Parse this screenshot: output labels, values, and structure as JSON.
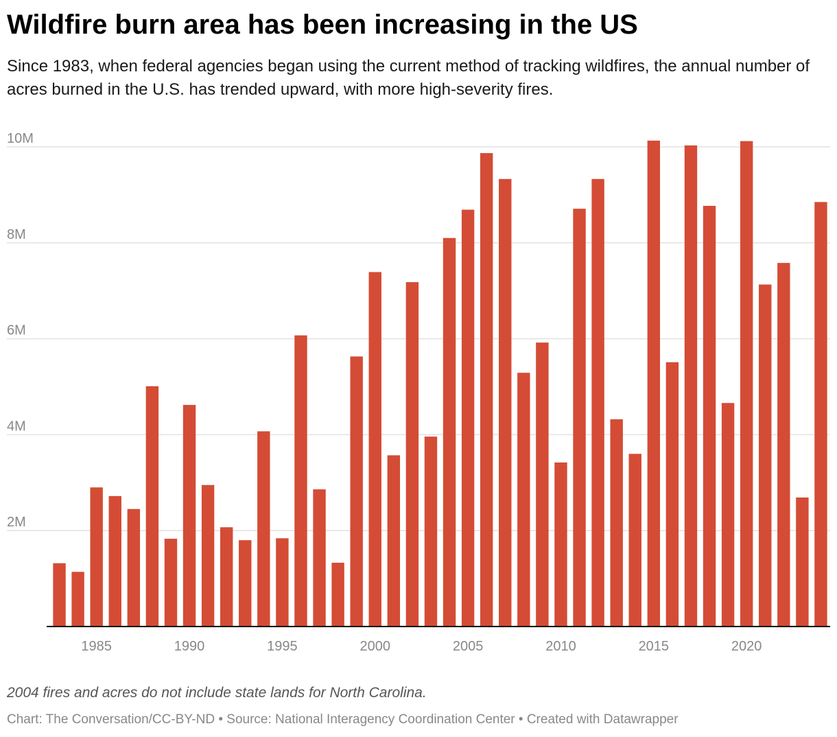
{
  "header": {
    "title": "Wildfire burn area has been increasing in the US",
    "subtitle": "Since 1983, when federal agencies began using the current method of tracking wildfires, the annual number of acres burned in the U.S. has trended upward, with more high-severity fires."
  },
  "footer": {
    "note": "2004 fires and acres do not include state lands for North Carolina.",
    "credits": "Chart: The Conversation/CC-BY-ND • Source: National Interagency Coordination Center • Created with Datawrapper"
  },
  "colors": {
    "bar": "#d44c35",
    "grid": "#e2e2e2",
    "axis": "#000000",
    "tick_text": "#888888"
  },
  "chart_data": {
    "type": "bar",
    "title": "Wildfire burn area has been increasing in the US",
    "xlabel": "",
    "ylabel": "",
    "ylim": [
      0,
      10000000
    ],
    "yticks": [
      2000000,
      4000000,
      6000000,
      8000000,
      10000000
    ],
    "ytick_labels": [
      "2M",
      "4M",
      "6M",
      "8M",
      "10M"
    ],
    "xtick_labels": [
      "1985",
      "1990",
      "1995",
      "2000",
      "2005",
      "2010",
      "2015",
      "2020"
    ],
    "categories": [
      1983,
      1984,
      1985,
      1986,
      1987,
      1988,
      1989,
      1990,
      1991,
      1992,
      1993,
      1994,
      1995,
      1996,
      1997,
      1998,
      1999,
      2000,
      2001,
      2002,
      2003,
      2004,
      2005,
      2006,
      2007,
      2008,
      2009,
      2010,
      2011,
      2012,
      2013,
      2014,
      2015,
      2016,
      2017,
      2018,
      2019,
      2020,
      2021,
      2022,
      2023,
      2024
    ],
    "series": [
      {
        "name": "Acres burned",
        "values": [
          1320000,
          1140000,
          2900000,
          2720000,
          2450000,
          5010000,
          1830000,
          4620000,
          2950000,
          2070000,
          1800000,
          4070000,
          1840000,
          6070000,
          2860000,
          1330000,
          5630000,
          7390000,
          3570000,
          7180000,
          3960000,
          8100000,
          8690000,
          9870000,
          9330000,
          5290000,
          5920000,
          3420000,
          8710000,
          9330000,
          4320000,
          3600000,
          10130000,
          5510000,
          10030000,
          8770000,
          4660000,
          10120000,
          7130000,
          7580000,
          2690000,
          8850000
        ]
      }
    ],
    "legend": "none",
    "grid": true
  }
}
